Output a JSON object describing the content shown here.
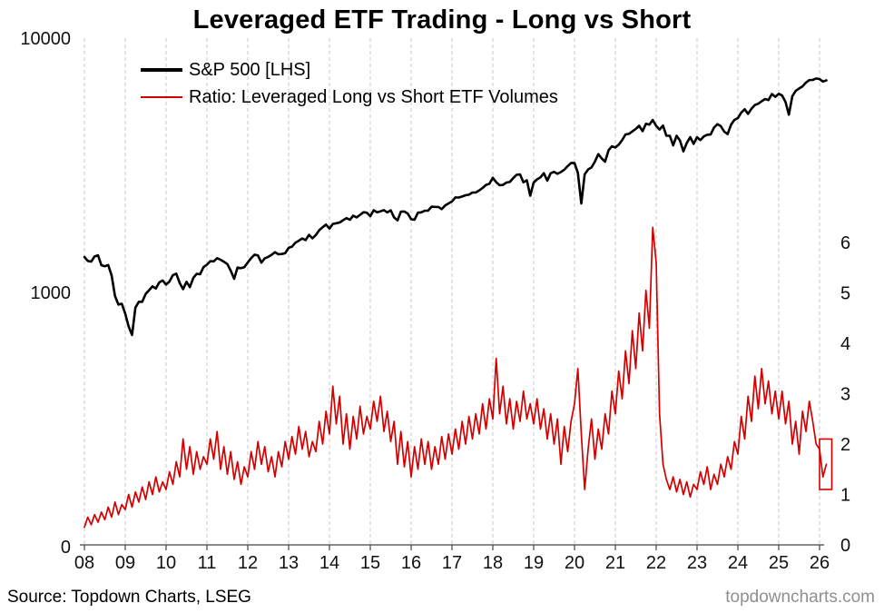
{
  "title": "Leveraged ETF Trading - Long vs Short",
  "legend": {
    "sp500": {
      "label": "S&P 500 [LHS]",
      "color": "#000000"
    },
    "ratio": {
      "label": "Ratio: Leveraged Long vs Short ETF Volumes",
      "color": "#d40000"
    }
  },
  "footer": {
    "source": "Source: Topdown Charts, LSEG",
    "site": "topdowncharts.com"
  },
  "colors": {
    "sp500_line": "#000000",
    "ratio_line": "#d40000",
    "gridline": "#c9c9c9",
    "axis": "#444444",
    "site_credit": "#8f8f8f"
  },
  "chart_data": {
    "type": "line",
    "title": "Leveraged ETF Trading - Long vs Short",
    "grid": "vertical-dashed-per-year",
    "legend_position": "top-left-inside",
    "x_ticks": [
      "08",
      "09",
      "10",
      "11",
      "12",
      "13",
      "14",
      "15",
      "16",
      "17",
      "18",
      "19",
      "20",
      "21",
      "22",
      "23",
      "24",
      "25",
      "26"
    ],
    "x_start_year": 2008,
    "x_end_year": 2026.25,
    "left_axis": {
      "scale": "log",
      "labels": [
        "10000",
        "1000",
        "0"
      ],
      "anchor_values": [
        10000,
        1000,
        100
      ],
      "range": [
        100,
        10000
      ]
    },
    "right_axis": {
      "scale": "linear",
      "min": 0,
      "max": 6,
      "ticks": [
        0,
        1,
        2,
        3,
        4,
        5,
        6
      ]
    },
    "series": [
      {
        "name": "S&P 500 [LHS]",
        "axis": "left",
        "color": "#000000",
        "width": 2.6,
        "x_start": 2008.0,
        "x_step": 0.08333,
        "values": [
          1378,
          1330,
          1322,
          1385,
          1400,
          1280,
          1267,
          1282,
          1166,
          968,
          896,
          903,
          825,
          735,
          680,
          872,
          919,
          919,
          987,
          1020,
          1057,
          1036,
          1095,
          1115,
          1073,
          1104,
          1169,
          1186,
          1089,
          1030,
          1101,
          1049,
          1141,
          1183,
          1180,
          1257,
          1286,
          1327,
          1325,
          1363,
          1345,
          1320,
          1292,
          1218,
          1131,
          1253,
          1246,
          1257,
          1312,
          1365,
          1408,
          1397,
          1310,
          1362,
          1379,
          1406,
          1440,
          1412,
          1416,
          1426,
          1498,
          1514,
          1569,
          1597,
          1630,
          1606,
          1685,
          1632,
          1681,
          1756,
          1805,
          1848,
          1782,
          1859,
          1872,
          1883,
          1923,
          1960,
          1930,
          2003,
          1972,
          2018,
          2067,
          2058,
          1994,
          2104,
          2067,
          2085,
          2107,
          2063,
          2103,
          1972,
          1920,
          2079,
          2080,
          2043,
          1940,
          1932,
          2059,
          2065,
          2096,
          2098,
          2173,
          2170,
          2168,
          2126,
          2198,
          2238,
          2278,
          2363,
          2362,
          2384,
          2411,
          2423,
          2470,
          2471,
          2519,
          2575,
          2647,
          2673,
          2823,
          2713,
          2640,
          2648,
          2705,
          2718,
          2816,
          2901,
          2913,
          2711,
          2760,
          2400,
          2704,
          2784,
          2834,
          2945,
          2752,
          2941,
          2980,
          2926,
          2976,
          3037,
          3140,
          3230,
          3225,
          2954,
          2237,
          2912,
          3044,
          3100,
          3271,
          3500,
          3363,
          3269,
          3621,
          3756,
          3714,
          3811,
          3972,
          4181,
          4204,
          4297,
          4395,
          4522,
          4307,
          4605,
          4567,
          4766,
          4515,
          4373,
          4530,
          4131,
          4132,
          3785,
          4130,
          3955,
          3585,
          3871,
          4080,
          3839,
          4076,
          3970,
          4109,
          4169,
          4179,
          4450,
          4588,
          4507,
          4288,
          4193,
          4567,
          4769,
          4845,
          5096,
          5254,
          5035,
          5277,
          5460,
          5522,
          5648,
          5762,
          5705,
          6032,
          5881,
          6040,
          5954,
          5611,
          5000,
          5911,
          6204,
          6339,
          6460,
          6688,
          6840,
          6849,
          6940,
          6900,
          6750,
          6820
        ]
      },
      {
        "name": "Ratio: Leveraged Long vs Short ETF Volumes",
        "axis": "right",
        "color": "#d40000",
        "width": 1.7,
        "x_start": 2008.0,
        "x_step": 0.08333,
        "values": [
          0.35,
          0.55,
          0.4,
          0.6,
          0.45,
          0.65,
          0.5,
          0.75,
          0.55,
          0.85,
          0.6,
          0.8,
          0.7,
          1.0,
          0.75,
          1.05,
          0.85,
          1.15,
          0.9,
          1.25,
          1.0,
          1.35,
          1.05,
          1.25,
          1.1,
          1.45,
          1.2,
          1.65,
          1.35,
          2.1,
          1.5,
          1.95,
          1.4,
          1.85,
          1.5,
          1.75,
          1.6,
          2.1,
          1.7,
          2.25,
          1.5,
          1.95,
          1.4,
          1.85,
          1.3,
          1.65,
          1.2,
          1.55,
          1.35,
          1.85,
          1.5,
          2.05,
          1.6,
          1.95,
          1.45,
          1.75,
          1.35,
          1.85,
          1.55,
          2.05,
          1.7,
          2.15,
          1.8,
          2.35,
          1.9,
          2.25,
          1.75,
          2.05,
          1.85,
          2.45,
          2.0,
          2.65,
          2.2,
          3.15,
          2.4,
          2.95,
          2.0,
          2.6,
          1.9,
          2.55,
          2.1,
          2.75,
          2.2,
          2.55,
          2.3,
          2.85,
          2.45,
          2.95,
          2.25,
          2.65,
          2.05,
          2.45,
          1.6,
          2.25,
          1.55,
          2.05,
          1.35,
          1.95,
          1.5,
          2.1,
          1.6,
          2.05,
          1.5,
          1.95,
          1.6,
          2.15,
          1.7,
          2.2,
          1.8,
          2.3,
          1.9,
          2.45,
          2.0,
          2.55,
          2.1,
          2.6,
          2.2,
          2.8,
          2.3,
          2.9,
          2.5,
          3.7,
          2.6,
          3.15,
          2.4,
          2.9,
          2.3,
          2.85,
          2.45,
          3.05,
          2.5,
          2.8,
          2.4,
          2.9,
          2.3,
          2.7,
          2.1,
          2.6,
          2.0,
          2.5,
          1.6,
          2.35,
          1.85,
          2.45,
          2.8,
          3.5,
          2.2,
          1.1,
          1.9,
          2.5,
          1.7,
          2.3,
          1.9,
          2.6,
          2.2,
          3.05,
          2.6,
          3.45,
          2.9,
          3.85,
          3.2,
          4.25,
          3.5,
          4.6,
          3.85,
          5.05,
          4.3,
          6.3,
          5.6,
          2.6,
          1.6,
          1.3,
          1.1,
          1.35,
          1.05,
          1.3,
          1.0,
          1.25,
          0.95,
          1.2,
          1.1,
          1.45,
          1.2,
          1.55,
          1.1,
          1.4,
          1.2,
          1.6,
          1.35,
          1.75,
          1.5,
          2.05,
          1.8,
          2.55,
          2.1,
          2.95,
          2.45,
          3.35,
          2.7,
          3.5,
          2.8,
          3.25,
          2.6,
          3.05,
          2.5,
          3.05,
          2.4,
          2.85,
          2.0,
          2.45,
          1.8,
          2.65,
          2.25,
          2.85,
          2.45,
          2.0,
          1.9,
          1.35,
          1.6
        ]
      }
    ],
    "annotation_box": {
      "axis": "right",
      "x1": 2026.0,
      "x2": 2026.3,
      "y1": 1.1,
      "y2": 2.1,
      "color": "#d40000",
      "meaning": "highlight of most recent ratio readings"
    }
  }
}
